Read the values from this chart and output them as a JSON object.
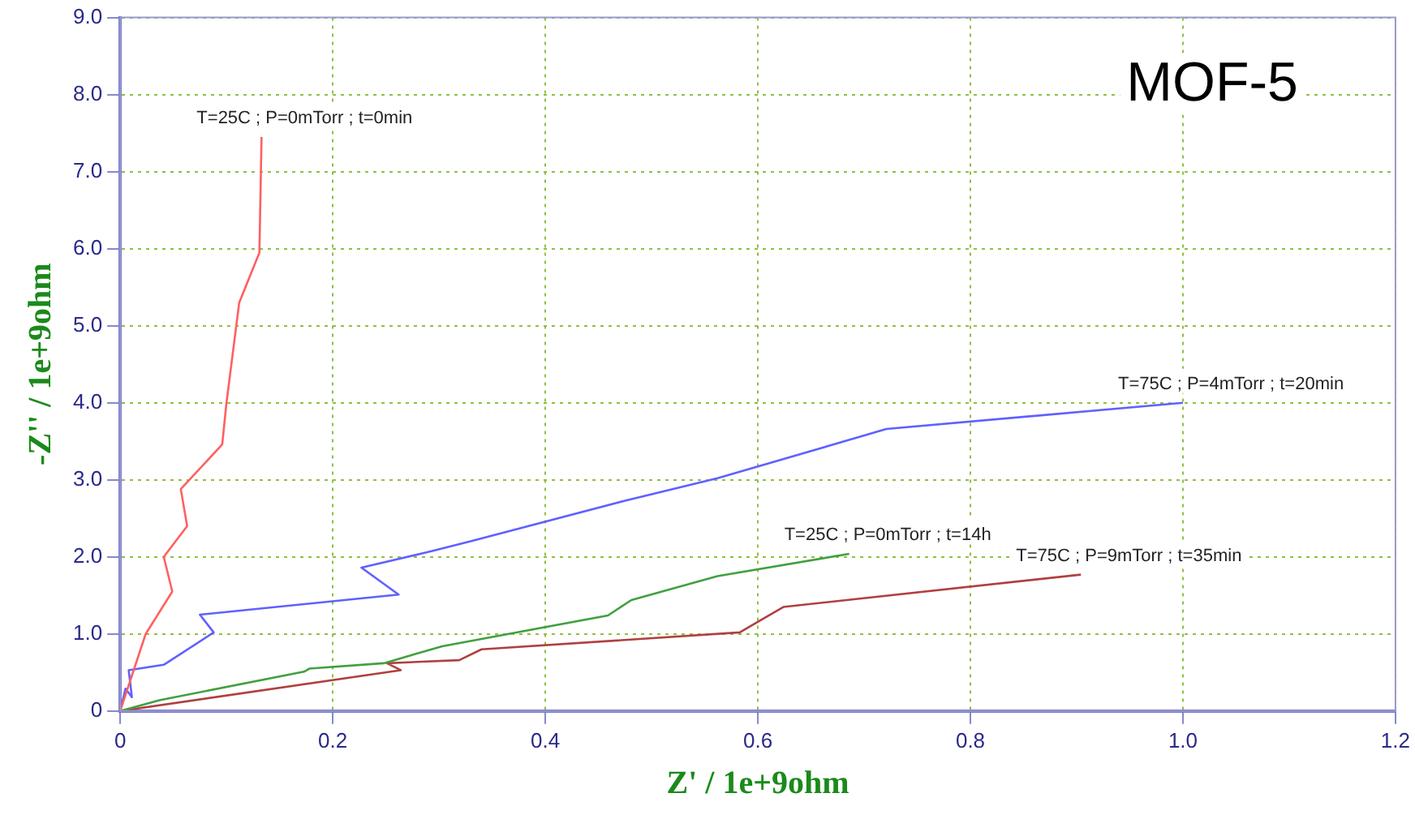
{
  "chart_data": {
    "type": "line",
    "xlabel": "Z' / 1e+9ohm",
    "ylabel": "-Z'' / 1e+9ohm",
    "annotations": [
      "MOF-5"
    ],
    "xlim": [
      0,
      1.2
    ],
    "xticks": [
      0,
      0.2,
      0.4,
      0.6,
      0.8,
      {
        "value": 1,
        "label": "1.0"
      },
      1.2
    ],
    "ylim": [
      0,
      9
    ],
    "yticks": [
      0,
      {
        "value": 1,
        "label": "1.0"
      },
      {
        "value": 2,
        "label": "2.0"
      },
      {
        "value": 3,
        "label": "3.0"
      },
      {
        "value": 4,
        "label": "4.0"
      },
      {
        "value": 5,
        "label": "5.0"
      },
      {
        "value": 6,
        "label": "6.0"
      },
      {
        "value": 7,
        "label": "7.0"
      },
      {
        "value": 8,
        "label": "8.0"
      },
      {
        "value": 9,
        "label": "9.0"
      }
    ],
    "grid": true,
    "legend": false,
    "marker": "none",
    "line_style": "solid",
    "series": [
      {
        "name": "T=25C ; P=0mTorr ; t=0min",
        "color": "#ff6060",
        "x": [
          0,
          0.024,
          0.049,
          0.041,
          0.063,
          0.057,
          0.096,
          0.1,
          0.112,
          0.131,
          0.133
        ],
        "values": [
          0,
          1.0,
          1.55,
          2.0,
          2.4,
          2.88,
          3.46,
          4.0,
          5.3,
          5.95,
          7.45
        ]
      },
      {
        "name": "T=75C ; P=4mTorr ; t=20min",
        "color": "#6060ff",
        "x": [
          0,
          0.005,
          0.011,
          0.008,
          0.041,
          0.088,
          0.075,
          0.262,
          0.227,
          0.292,
          0.329,
          0.475,
          0.562,
          0.721,
          1.0
        ],
        "values": [
          0,
          0.29,
          0.18,
          0.53,
          0.6,
          1.02,
          1.25,
          1.51,
          1.86,
          2.07,
          2.2,
          2.73,
          3.02,
          3.66,
          4.0
        ]
      },
      {
        "name": "T=25C ; P=0mTorr ; t=14h",
        "color": "#40a040",
        "x": [
          0,
          0.037,
          0.173,
          0.178,
          0.248,
          0.303,
          0.459,
          0.481,
          0.562,
          0.686
        ],
        "values": [
          0,
          0.14,
          0.51,
          0.55,
          0.62,
          0.84,
          1.24,
          1.44,
          1.75,
          2.04
        ]
      },
      {
        "name": "T=75C ; P=9mTorr ; t=35min",
        "color": "#b04040",
        "x": [
          0,
          0.264,
          0.251,
          0.319,
          0.34,
          0.583,
          0.624,
          0.904
        ],
        "values": [
          0,
          0.53,
          0.62,
          0.66,
          0.8,
          1.02,
          1.35,
          1.77
        ]
      }
    ]
  }
}
